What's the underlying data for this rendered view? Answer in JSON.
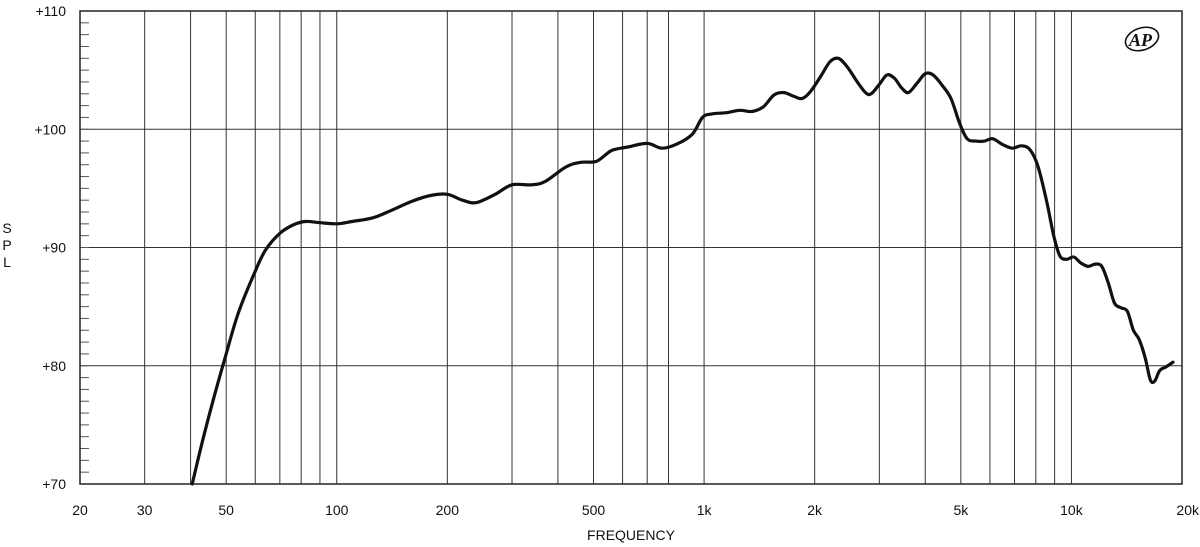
{
  "chart_data": {
    "type": "line",
    "xscale": "log",
    "xlim": [
      20,
      20000
    ],
    "ylim": [
      70,
      110
    ],
    "xlabel": "FREQUENCY",
    "ylabel": "S P L",
    "xticks": [
      {
        "value": 20,
        "label": "20"
      },
      {
        "value": 30,
        "label": "30"
      },
      {
        "value": 50,
        "label": "50"
      },
      {
        "value": 100,
        "label": "100"
      },
      {
        "value": 200,
        "label": "200"
      },
      {
        "value": 500,
        "label": "500"
      },
      {
        "value": 1000,
        "label": "1k"
      },
      {
        "value": 2000,
        "label": "2k"
      },
      {
        "value": 5000,
        "label": "5k"
      },
      {
        "value": 10000,
        "label": "10k"
      },
      {
        "value": 20000,
        "label": "20k"
      }
    ],
    "yticks": [
      {
        "value": 70,
        "label": "+70"
      },
      {
        "value": 80,
        "label": "+80"
      },
      {
        "value": 90,
        "label": "+90"
      },
      {
        "value": 100,
        "label": "+100"
      },
      {
        "value": 110,
        "label": "+110"
      }
    ],
    "grid_vertical": [
      30,
      40,
      50,
      60,
      70,
      80,
      90,
      100,
      200,
      300,
      400,
      500,
      600,
      700,
      800,
      1000,
      2000,
      3000,
      4000,
      5000,
      6000,
      7000,
      8000,
      9000,
      10000
    ],
    "grid_horizontal": [
      80,
      90,
      100
    ],
    "series": [
      {
        "points": [
          [
            40.4,
            70.0
          ],
          [
            43,
            73.5
          ],
          [
            46,
            77
          ],
          [
            50,
            81
          ],
          [
            54,
            84.5
          ],
          [
            60,
            88
          ],
          [
            64,
            89.8
          ],
          [
            70,
            91.2
          ],
          [
            76,
            91.9
          ],
          [
            82,
            92.2
          ],
          [
            90,
            92.1
          ],
          [
            100,
            92.0
          ],
          [
            110,
            92.2
          ],
          [
            125,
            92.5
          ],
          [
            140,
            93.1
          ],
          [
            160,
            93.9
          ],
          [
            180,
            94.4
          ],
          [
            200,
            94.5
          ],
          [
            220,
            94.0
          ],
          [
            240,
            93.8
          ],
          [
            270,
            94.5
          ],
          [
            300,
            95.3
          ],
          [
            340,
            95.3
          ],
          [
            370,
            95.6
          ],
          [
            420,
            96.8
          ],
          [
            460,
            97.2
          ],
          [
            510,
            97.3
          ],
          [
            560,
            98.2
          ],
          [
            620,
            98.5
          ],
          [
            700,
            98.8
          ],
          [
            770,
            98.4
          ],
          [
            850,
            98.8
          ],
          [
            930,
            99.6
          ],
          [
            990,
            101.0
          ],
          [
            1050,
            101.3
          ],
          [
            1150,
            101.4
          ],
          [
            1250,
            101.6
          ],
          [
            1350,
            101.5
          ],
          [
            1450,
            101.9
          ],
          [
            1550,
            102.9
          ],
          [
            1650,
            103.1
          ],
          [
            1750,
            102.8
          ],
          [
            1850,
            102.6
          ],
          [
            1950,
            103.2
          ],
          [
            2080,
            104.5
          ],
          [
            2200,
            105.7
          ],
          [
            2320,
            106.0
          ],
          [
            2450,
            105.3
          ],
          [
            2600,
            104.1
          ],
          [
            2750,
            103.1
          ],
          [
            2850,
            103.0
          ],
          [
            3000,
            103.8
          ],
          [
            3150,
            104.6
          ],
          [
            3300,
            104.3
          ],
          [
            3450,
            103.5
          ],
          [
            3600,
            103.1
          ],
          [
            3800,
            103.9
          ],
          [
            4000,
            104.7
          ],
          [
            4200,
            104.6
          ],
          [
            4450,
            103.7
          ],
          [
            4700,
            102.6
          ],
          [
            4950,
            100.6
          ],
          [
            5200,
            99.2
          ],
          [
            5500,
            99.0
          ],
          [
            5800,
            99.0
          ],
          [
            6100,
            99.2
          ],
          [
            6500,
            98.7
          ],
          [
            6900,
            98.4
          ],
          [
            7300,
            98.6
          ],
          [
            7700,
            98.3
          ],
          [
            8100,
            96.9
          ],
          [
            8550,
            94.0
          ],
          [
            8950,
            91.0
          ],
          [
            9300,
            89.3
          ],
          [
            9700,
            89.0
          ],
          [
            10150,
            89.2
          ],
          [
            10600,
            88.7
          ],
          [
            11100,
            88.4
          ],
          [
            11600,
            88.6
          ],
          [
            12100,
            88.4
          ],
          [
            12600,
            87.0
          ],
          [
            13100,
            85.3
          ],
          [
            13650,
            84.9
          ],
          [
            14200,
            84.6
          ],
          [
            14750,
            83.0
          ],
          [
            15300,
            82.2
          ],
          [
            15900,
            80.6
          ],
          [
            16400,
            78.8
          ],
          [
            16850,
            78.7
          ],
          [
            17400,
            79.6
          ],
          [
            18100,
            79.9
          ],
          [
            18900,
            80.3
          ]
        ]
      }
    ]
  },
  "logo": {
    "text": "AP"
  }
}
